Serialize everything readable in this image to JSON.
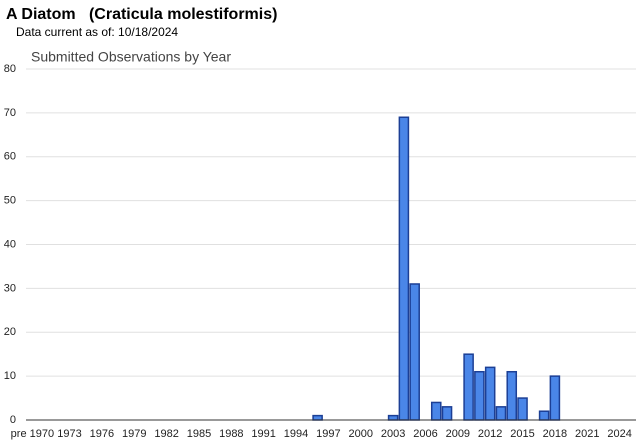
{
  "header": {
    "title": "A Diatom   (Craticula molestiformis)",
    "subtitle": "Data current as of: 10/18/2024"
  },
  "chart_data": {
    "type": "bar",
    "title": "Submitted Observations by Year",
    "categories": [
      "pre 1970",
      null,
      null,
      null,
      "1973",
      null,
      null,
      "1976",
      null,
      null,
      "1979",
      null,
      null,
      "1982",
      null,
      null,
      "1985",
      null,
      null,
      "1988",
      null,
      null,
      "1991",
      null,
      null,
      "1994",
      null,
      null,
      "1997",
      null,
      null,
      "2000",
      null,
      null,
      "2003",
      null,
      null,
      "2006",
      null,
      null,
      "2009",
      null,
      null,
      "2012",
      null,
      null,
      "2015",
      null,
      null,
      "2018",
      null,
      null,
      "2021",
      null,
      null,
      "2024"
    ],
    "values": [
      0,
      0,
      0,
      0,
      0,
      0,
      0,
      0,
      0,
      0,
      0,
      0,
      0,
      0,
      0,
      0,
      0,
      0,
      0,
      0,
      0,
      0,
      0,
      0,
      0,
      0,
      0,
      1,
      0,
      0,
      0,
      0,
      0,
      0,
      1,
      69,
      31,
      0,
      4,
      3,
      0,
      15,
      11,
      12,
      3,
      11,
      5,
      0,
      2,
      10,
      0,
      0,
      0,
      0,
      0,
      0
    ],
    "color": "#4a86e8",
    "ylim": [
      0,
      80
    ],
    "yticks": [
      0,
      10,
      20,
      30,
      40,
      50,
      60,
      70,
      80
    ],
    "grid": true
  }
}
